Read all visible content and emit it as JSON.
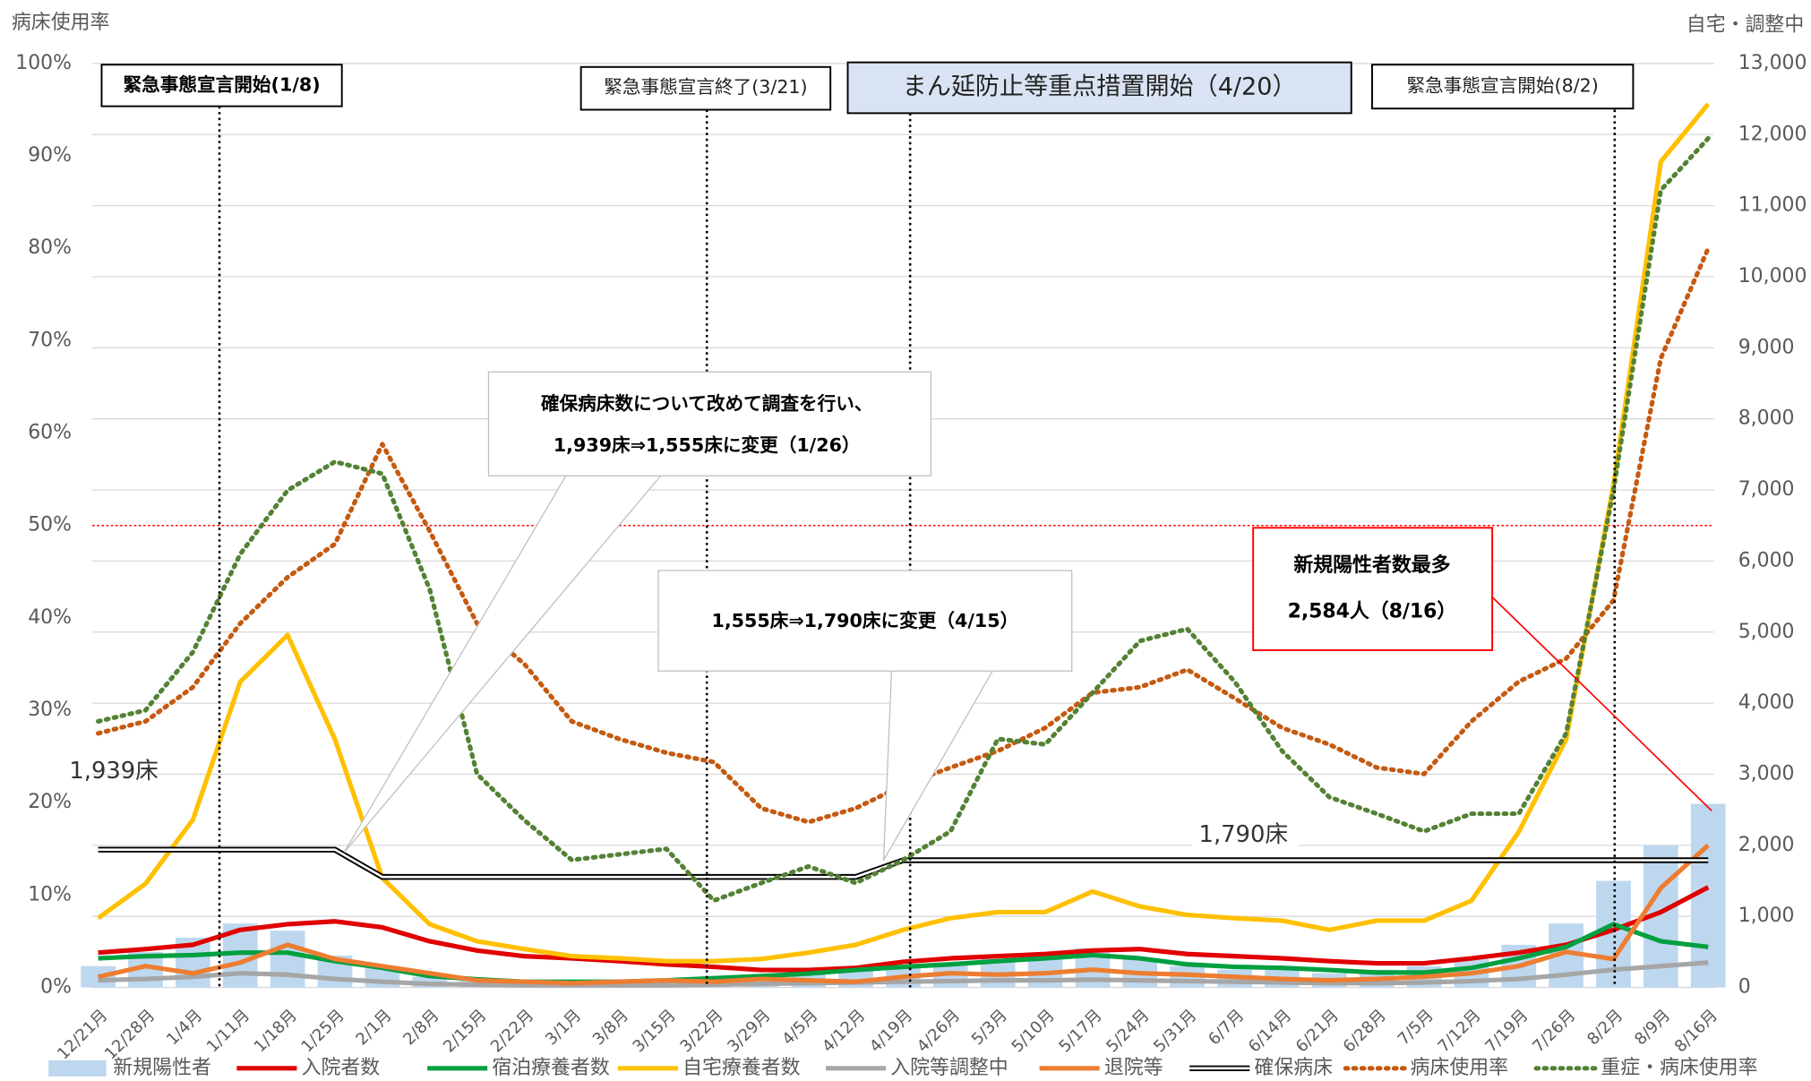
{
  "chart_data": {
    "type": "combo",
    "y_label": "病床使用率",
    "y2_label": "自宅・調整中",
    "categories": [
      "12/21月",
      "12/28月",
      "1/4月",
      "1/11月",
      "1/18月",
      "1/25月",
      "2/1月",
      "2/8月",
      "2/15月",
      "2/22月",
      "3/1月",
      "3/8月",
      "3/15月",
      "3/22月",
      "3/29月",
      "4/5月",
      "4/12月",
      "4/19月",
      "4/26月",
      "5/3月",
      "5/10月",
      "5/17月",
      "5/24月",
      "5/31月",
      "6/7月",
      "6/14月",
      "6/21月",
      "6/28月",
      "7/5月",
      "7/12月",
      "7/19月",
      "7/26月",
      "8/2月",
      "8/9月",
      "8/16月"
    ],
    "ylim": [
      0,
      100
    ],
    "yticks": [
      {
        "value": 0,
        "label": "0%"
      },
      {
        "value": 10,
        "label": "10%"
      },
      {
        "value": 20,
        "label": "20%"
      },
      {
        "value": 30,
        "label": "30%"
      },
      {
        "value": 40,
        "label": "40%"
      },
      {
        "value": 50,
        "label": "50%"
      },
      {
        "value": 60,
        "label": "60%"
      },
      {
        "value": 70,
        "label": "70%"
      },
      {
        "value": 80,
        "label": "80%"
      },
      {
        "value": 90,
        "label": "90%"
      },
      {
        "value": 100,
        "label": "100%"
      }
    ],
    "y2lim": [
      0,
      13000
    ],
    "y2ticks": [
      0,
      {
        "value": 1000,
        "label": "1,000"
      },
      {
        "value": 2000,
        "label": "2,000"
      },
      {
        "value": 3000,
        "label": "3,000"
      },
      {
        "value": 4000,
        "label": "4,000"
      },
      {
        "value": 5000,
        "label": "5,000"
      },
      {
        "value": 6000,
        "label": "6,000"
      },
      {
        "value": 7000,
        "label": "7,000"
      },
      {
        "value": 8000,
        "label": "8,000"
      },
      {
        "value": 9000,
        "label": "9,000"
      },
      {
        "value": 10000,
        "label": "10,000"
      },
      {
        "value": 11000,
        "label": "11,000"
      },
      {
        "value": 12000,
        "label": "12,000"
      },
      {
        "value": 13000,
        "label": "13,000"
      }
    ],
    "grid": "y2",
    "reference_line": {
      "value": 50,
      "color": "#ff0000"
    },
    "series": [
      {
        "name": "新規陽性者",
        "color": "#bdd7ee",
        "style": "bar",
        "axis": "y2",
        "values": [
          300,
          500,
          700,
          900,
          800,
          450,
          300,
          150,
          100,
          80,
          70,
          80,
          90,
          100,
          150,
          200,
          250,
          300,
          350,
          400,
          450,
          550,
          400,
          300,
          250,
          250,
          200,
          250,
          300,
          400,
          600,
          900,
          1500,
          2000,
          2584
        ]
      },
      {
        "name": "入院者数",
        "color": "#e00000",
        "style": "line",
        "axis": "y2",
        "values": [
          490,
          540,
          600,
          810,
          890,
          930,
          845,
          650,
          520,
          440,
          410,
          370,
          325,
          290,
          245,
          245,
          275,
          360,
          410,
          440,
          470,
          520,
          540,
          470,
          440,
          410,
          370,
          340,
          340,
          410,
          490,
          600,
          810,
          1060,
          1410
        ]
      },
      {
        "name": "宿泊療養者数",
        "color": "#00a040",
        "style": "line",
        "axis": "y2",
        "values": [
          410,
          440,
          455,
          490,
          490,
          370,
          275,
          160,
          115,
          80,
          80,
          80,
          100,
          130,
          160,
          195,
          245,
          290,
          325,
          370,
          410,
          455,
          410,
          325,
          290,
          275,
          245,
          210,
          210,
          275,
          410,
          570,
          890,
          650,
          570
        ]
      },
      {
        "name": "自宅療養者数",
        "color": "#ffc000",
        "style": "line",
        "axis": "y2",
        "values": [
          975,
          1460,
          2360,
          4300,
          4960,
          3490,
          1540,
          890,
          650,
          540,
          440,
          410,
          370,
          370,
          400,
          490,
          600,
          810,
          975,
          1060,
          1060,
          1350,
          1140,
          1020,
          975,
          940,
          810,
          940,
          940,
          1220,
          2190,
          3490,
          7070,
          11620,
          12430
        ]
      },
      {
        "name": "入院等調整中",
        "color": "#a6a6a6",
        "style": "line",
        "axis": "y2",
        "values": [
          100,
          120,
          150,
          200,
          180,
          120,
          80,
          50,
          40,
          30,
          30,
          30,
          30,
          40,
          50,
          60,
          70,
          80,
          90,
          100,
          100,
          110,
          100,
          90,
          80,
          70,
          60,
          60,
          70,
          90,
          120,
          180,
          250,
          300,
          350
        ]
      },
      {
        "name": "退院等",
        "color": "#ed7d31",
        "style": "line",
        "axis": "y2",
        "values": [
          150,
          300,
          200,
          350,
          600,
          400,
          300,
          200,
          100,
          80,
          60,
          80,
          100,
          80,
          120,
          100,
          80,
          150,
          200,
          180,
          200,
          250,
          200,
          180,
          150,
          120,
          100,
          120,
          150,
          200,
          300,
          500,
          400,
          1400,
          2000
        ]
      },
      {
        "name": "確保病床",
        "color": "#000000",
        "style": "double",
        "axis": "y2",
        "values": [
          1939,
          1939,
          1939,
          1939,
          1939,
          1939,
          1555,
          1555,
          1555,
          1555,
          1555,
          1555,
          1555,
          1555,
          1555,
          1555,
          1555,
          1790,
          1790,
          1790,
          1790,
          1790,
          1790,
          1790,
          1790,
          1790,
          1790,
          1790,
          1790,
          1790,
          1790,
          1790,
          1790,
          1790,
          1790
        ]
      },
      {
        "name": "病床使用率",
        "color": "#c55a11",
        "style": "dotted",
        "axis": "y",
        "values": [
          27.5,
          28.8,
          32.5,
          39.4,
          44.4,
          48,
          58.8,
          49.4,
          39.4,
          35,
          28.8,
          26.9,
          25.4,
          24.4,
          19.4,
          17.9,
          19.4,
          21.9,
          23.8,
          25.6,
          28.1,
          31.9,
          32.5,
          34.4,
          31.3,
          28.1,
          26.3,
          23.8,
          23.1,
          28.8,
          33.1,
          35.6,
          41.9,
          68.1,
          80
        ]
      },
      {
        "name": "重症・病床使用率",
        "color": "#548235",
        "style": "dotted",
        "axis": "y",
        "values": [
          28.8,
          30,
          36.3,
          46.9,
          53.8,
          56.9,
          55.6,
          43.1,
          23.1,
          18.1,
          13.8,
          14.4,
          15,
          9.4,
          11.3,
          13.1,
          11.3,
          13.8,
          16.9,
          26.9,
          26.3,
          31.9,
          37.5,
          38.8,
          33.1,
          25.6,
          20.6,
          18.8,
          16.9,
          18.8,
          18.8,
          27.5,
          53.8,
          86.3,
          91.9
        ]
      }
    ],
    "annotations": {
      "event1": "緊急事態宣言開始(1/8)",
      "event2": "緊急事態宣言終了(3/21)",
      "event3": "まん延防止等重点措置開始（4/20）",
      "event4": "緊急事態宣言開始(8/2)",
      "callout1_line1": "確保病床数について改めて調査を行い、",
      "callout1_line2": "1,939床⇒1,555床に変更（1/26）",
      "callout2": "1,555床⇒1,790床に変更（4/15）",
      "max_line1": "新規陽性者数最多",
      "max_line2": "2,584人（8/16）",
      "beds_start": "1,939床",
      "beds_end": "1,790床"
    }
  }
}
